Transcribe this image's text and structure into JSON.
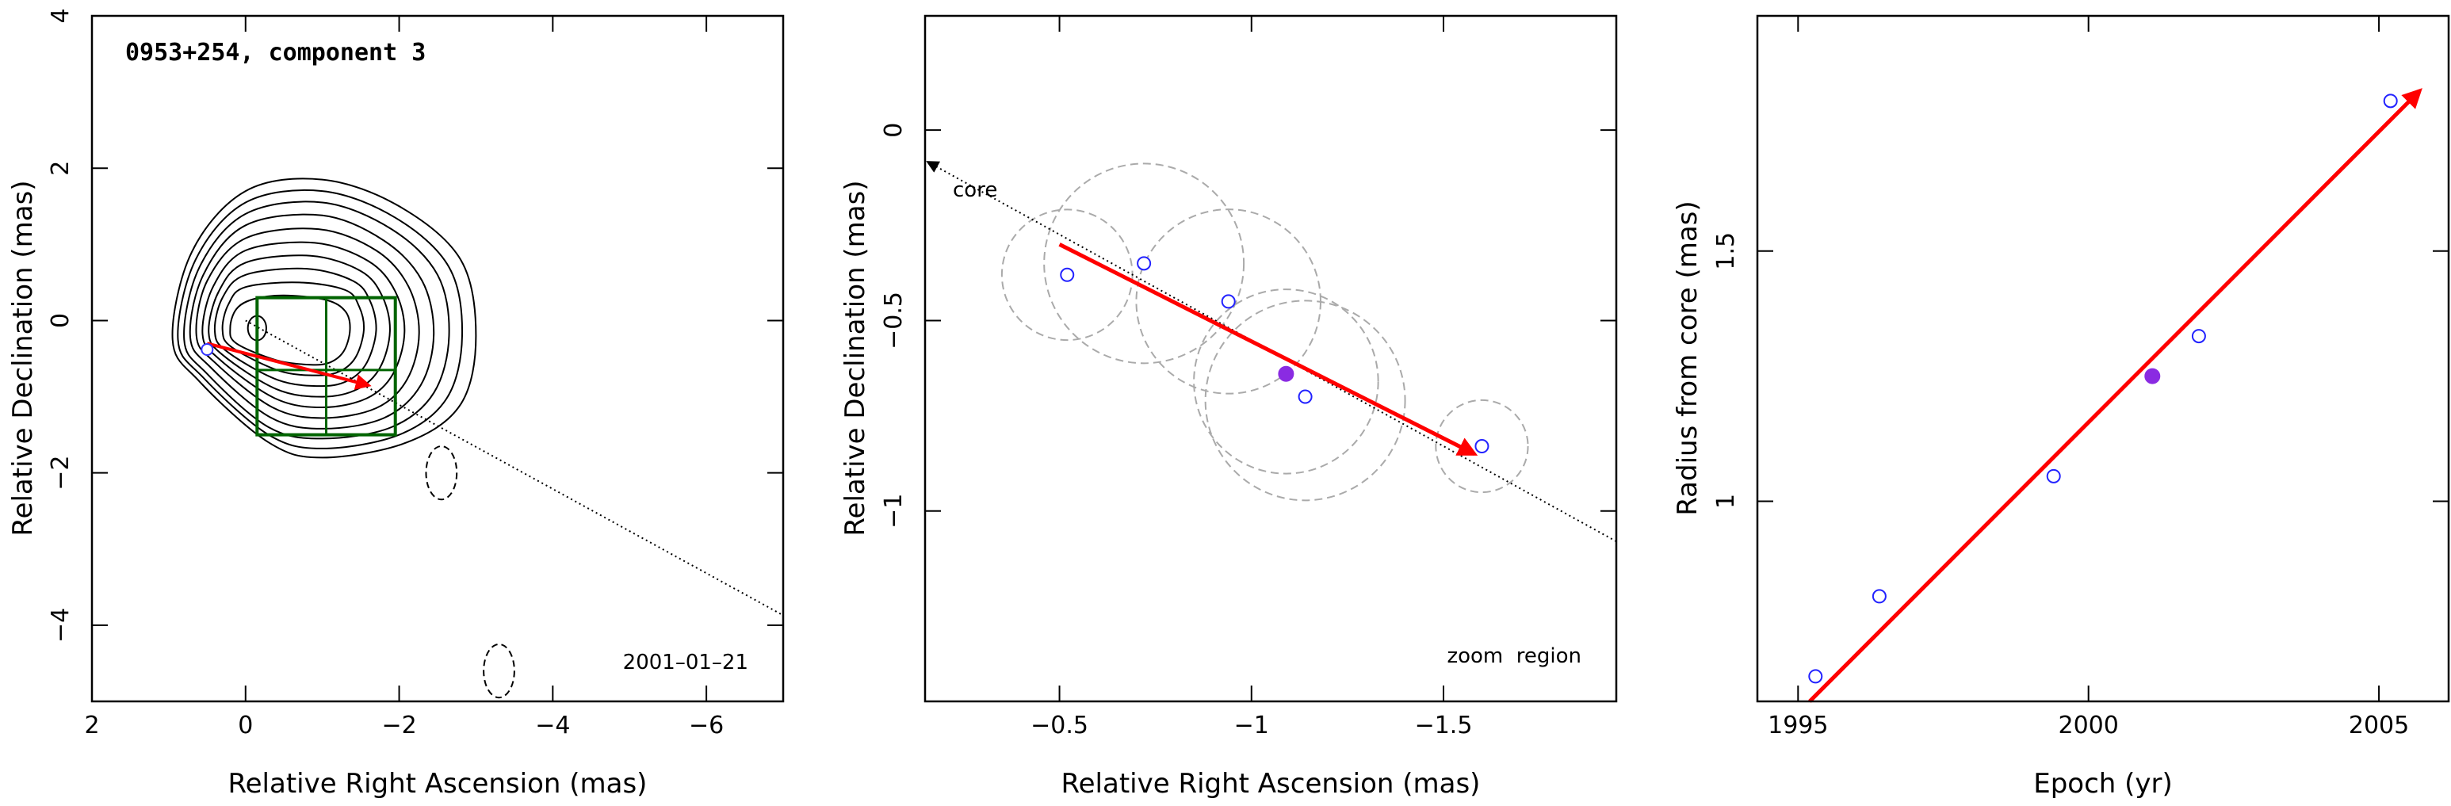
{
  "chart_data": [
    {
      "type": "scatter",
      "title": "0953+254, component 3",
      "xlabel": "Relative Right Ascension (mas)",
      "ylabel": "Relative Declination (mas)",
      "xlim": [
        2,
        -7
      ],
      "ylim": [
        -5,
        4
      ],
      "x_ticks": [
        2,
        0,
        -2,
        -4,
        -6
      ],
      "x_tick_labels": [
        "2",
        "0",
        "−2",
        "−4",
        "−6"
      ],
      "y_ticks": [
        -4,
        -2,
        0,
        2,
        4
      ],
      "y_tick_labels": [
        "−4",
        "−2",
        "0",
        "2",
        "4"
      ],
      "annotations": [
        {
          "text": "2001–01–21"
        }
      ],
      "contours": [
        [
          [
            0.95,
            -0.25
          ],
          [
            0.7,
            0.9
          ],
          [
            0,
            1.7
          ],
          [
            -1,
            1.85
          ],
          [
            -2,
            1.5
          ],
          [
            -2.8,
            0.8
          ],
          [
            -3,
            -0.2
          ],
          [
            -2.8,
            -1.1
          ],
          [
            -2.1,
            -1.6
          ],
          [
            -1,
            -1.8
          ],
          [
            -0.3,
            -1.6
          ],
          [
            0.6,
            -0.8
          ]
        ],
        [
          [
            0.88,
            -0.25
          ],
          [
            0.65,
            0.8
          ],
          [
            0,
            1.55
          ],
          [
            -1,
            1.7
          ],
          [
            -1.95,
            1.35
          ],
          [
            -2.65,
            0.7
          ],
          [
            -2.82,
            -0.2
          ],
          [
            -2.62,
            -1.02
          ],
          [
            -2,
            -1.5
          ],
          [
            -1,
            -1.68
          ],
          [
            -0.3,
            -1.5
          ],
          [
            0.55,
            -0.75
          ]
        ],
        [
          [
            0.8,
            -0.25
          ],
          [
            0.6,
            0.7
          ],
          [
            0,
            1.4
          ],
          [
            -1,
            1.55
          ],
          [
            -1.9,
            1.2
          ],
          [
            -2.5,
            0.6
          ],
          [
            -2.65,
            -0.2
          ],
          [
            -2.45,
            -0.95
          ],
          [
            -1.9,
            -1.4
          ],
          [
            -1,
            -1.55
          ],
          [
            -0.3,
            -1.4
          ],
          [
            0.5,
            -0.7
          ]
        ],
        [
          [
            0.72,
            -0.22
          ],
          [
            0.55,
            0.6
          ],
          [
            0,
            1.25
          ],
          [
            -1,
            1.38
          ],
          [
            -1.8,
            1.05
          ],
          [
            -2.3,
            0.52
          ],
          [
            -2.45,
            -0.18
          ],
          [
            -2.28,
            -0.85
          ],
          [
            -1.8,
            -1.28
          ],
          [
            -1,
            -1.42
          ],
          [
            -0.32,
            -1.27
          ],
          [
            0.45,
            -0.62
          ]
        ],
        [
          [
            0.64,
            -0.2
          ],
          [
            0.5,
            0.52
          ],
          [
            0,
            1.08
          ],
          [
            -0.95,
            1.2
          ],
          [
            -1.7,
            0.92
          ],
          [
            -2.12,
            0.45
          ],
          [
            -2.26,
            -0.17
          ],
          [
            -2.1,
            -0.78
          ],
          [
            -1.7,
            -1.15
          ],
          [
            -1,
            -1.28
          ],
          [
            -0.35,
            -1.14
          ],
          [
            0.4,
            -0.55
          ]
        ],
        [
          [
            0.56,
            -0.18
          ],
          [
            0.42,
            0.45
          ],
          [
            0,
            0.92
          ],
          [
            -0.9,
            1.02
          ],
          [
            -1.6,
            0.78
          ],
          [
            -1.95,
            0.38
          ],
          [
            -2.07,
            -0.15
          ],
          [
            -1.92,
            -0.7
          ],
          [
            -1.58,
            -1.02
          ],
          [
            -1,
            -1.14
          ],
          [
            -0.38,
            -1.02
          ],
          [
            0.35,
            -0.5
          ]
        ],
        [
          [
            0.48,
            -0.16
          ],
          [
            0.35,
            0.38
          ],
          [
            0,
            0.76
          ],
          [
            -0.85,
            0.85
          ],
          [
            -1.5,
            0.65
          ],
          [
            -1.78,
            0.32
          ],
          [
            -1.88,
            -0.14
          ],
          [
            -1.75,
            -0.62
          ],
          [
            -1.46,
            -0.9
          ],
          [
            -1,
            -1
          ],
          [
            -0.4,
            -0.9
          ],
          [
            0.3,
            -0.45
          ]
        ],
        [
          [
            0.4,
            -0.14
          ],
          [
            0.3,
            0.3
          ],
          [
            0,
            0.6
          ],
          [
            -0.8,
            0.68
          ],
          [
            -1.4,
            0.52
          ],
          [
            -1.62,
            0.26
          ],
          [
            -1.7,
            -0.13
          ],
          [
            -1.58,
            -0.55
          ],
          [
            -1.35,
            -0.78
          ],
          [
            -1,
            -0.86
          ],
          [
            -0.42,
            -0.78
          ],
          [
            0.25,
            -0.4
          ]
        ],
        [
          [
            0.3,
            -0.12
          ],
          [
            0.22,
            0.22
          ],
          [
            0,
            0.44
          ],
          [
            -0.7,
            0.5
          ],
          [
            -1.3,
            0.4
          ],
          [
            -1.48,
            0.18
          ],
          [
            -1.54,
            -0.12
          ],
          [
            -1.44,
            -0.47
          ],
          [
            -1.24,
            -0.66
          ],
          [
            -0.95,
            -0.72
          ],
          [
            -0.44,
            -0.66
          ],
          [
            0.18,
            -0.35
          ]
        ],
        [
          [
            0.2,
            -0.1
          ],
          [
            0.12,
            0.15
          ],
          [
            -0.1,
            0.28
          ],
          [
            -0.5,
            0.33
          ],
          [
            -1.05,
            0.27
          ],
          [
            -1.3,
            0.12
          ],
          [
            -1.36,
            -0.12
          ],
          [
            -1.28,
            -0.4
          ],
          [
            -1.1,
            -0.55
          ],
          [
            -0.85,
            -0.58
          ],
          [
            -0.4,
            -0.52
          ],
          [
            0.12,
            -0.3
          ]
        ]
      ],
      "small_ellipse": {
        "x": -0.15,
        "y": -0.1,
        "rx": 0.12,
        "ry": 0.16
      },
      "dashed_ellipses": [
        {
          "x": -2.55,
          "y": -2.0,
          "rx": 0.2,
          "ry": 0.35
        },
        {
          "x": -3.3,
          "y": -4.6,
          "rx": 0.2,
          "ry": 0.35
        }
      ],
      "zoom_box": {
        "x_min": -1.95,
        "x_max": -0.15,
        "y_min": -1.5,
        "y_max": 0.3,
        "x_div": -1.05,
        "y_div": -0.65
      },
      "jet_line": {
        "x1": 0,
        "y1": 0,
        "x2": -7,
        "y2": -3.87
      },
      "arrow": {
        "x1": 0.5,
        "y1": -0.3,
        "x2": -1.6,
        "y2": -0.85
      },
      "points": [
        {
          "x": 0.5,
          "y": -0.38
        }
      ]
    },
    {
      "type": "scatter",
      "xlabel": "Relative Right Ascension (mas)",
      "ylabel": "Relative Declination (mas)",
      "xlim": [
        -0.15,
        -1.95
      ],
      "ylim": [
        -1.5,
        0.3
      ],
      "x_ticks": [
        -0.5,
        -1,
        -1.5
      ],
      "x_tick_labels": [
        "−0.5",
        "−1",
        "−1.5"
      ],
      "y_ticks": [
        0,
        -0.5,
        -1
      ],
      "y_tick_labels": [
        "0",
        "−0.5",
        "−1"
      ],
      "annotations": [
        {
          "text": "core"
        },
        {
          "text": "zoom  region"
        }
      ],
      "jet_line": {
        "x1": -0.15,
        "y1": -0.08,
        "x2": -1.95,
        "y2": -1.08
      },
      "arrow": {
        "x1": -0.5,
        "y1": -0.3,
        "x2": -1.58,
        "y2": -0.85
      },
      "points_open": [
        {
          "x": -0.52,
          "y": -0.38
        },
        {
          "x": -0.72,
          "y": -0.35
        },
        {
          "x": -0.94,
          "y": -0.45
        },
        {
          "x": -1.14,
          "y": -0.7
        },
        {
          "x": -1.6,
          "y": -0.83
        }
      ],
      "points_filled": [
        {
          "x": -1.09,
          "y": -0.64
        }
      ],
      "uncertainty_circles": [
        {
          "x": -0.52,
          "y": -0.38,
          "r": 0.17
        },
        {
          "x": -0.72,
          "y": -0.35,
          "r": 0.26
        },
        {
          "x": -0.94,
          "y": -0.45,
          "r": 0.24
        },
        {
          "x": -1.09,
          "y": -0.66,
          "r": 0.24
        },
        {
          "x": -1.14,
          "y": -0.71,
          "r": 0.26
        },
        {
          "x": -1.6,
          "y": -0.83,
          "r": 0.12
        }
      ]
    },
    {
      "type": "scatter",
      "xlabel": "Epoch (yr)",
      "ylabel": "Radius from core (mas)",
      "xlim": [
        1994.3,
        2006.2
      ],
      "ylim": [
        0.6,
        1.97
      ],
      "x_ticks": [
        1995,
        2000,
        2005
      ],
      "x_tick_labels": [
        "1995",
        "2000",
        "2005"
      ],
      "y_ticks": [
        1,
        1.5
      ],
      "y_tick_labels": [
        "1",
        "1.5"
      ],
      "fit_line": {
        "x1": 1995.2,
        "y1": 0.6,
        "x2": 2005.7,
        "y2": 1.82
      },
      "points_open": [
        {
          "x": 1995.3,
          "y": 0.65
        },
        {
          "x": 1996.4,
          "y": 0.81
        },
        {
          "x": 1999.4,
          "y": 1.05
        },
        {
          "x": 2001.9,
          "y": 1.33
        },
        {
          "x": 2005.2,
          "y": 1.8
        }
      ],
      "points_filled": [
        {
          "x": 2001.1,
          "y": 1.25
        }
      ]
    }
  ]
}
